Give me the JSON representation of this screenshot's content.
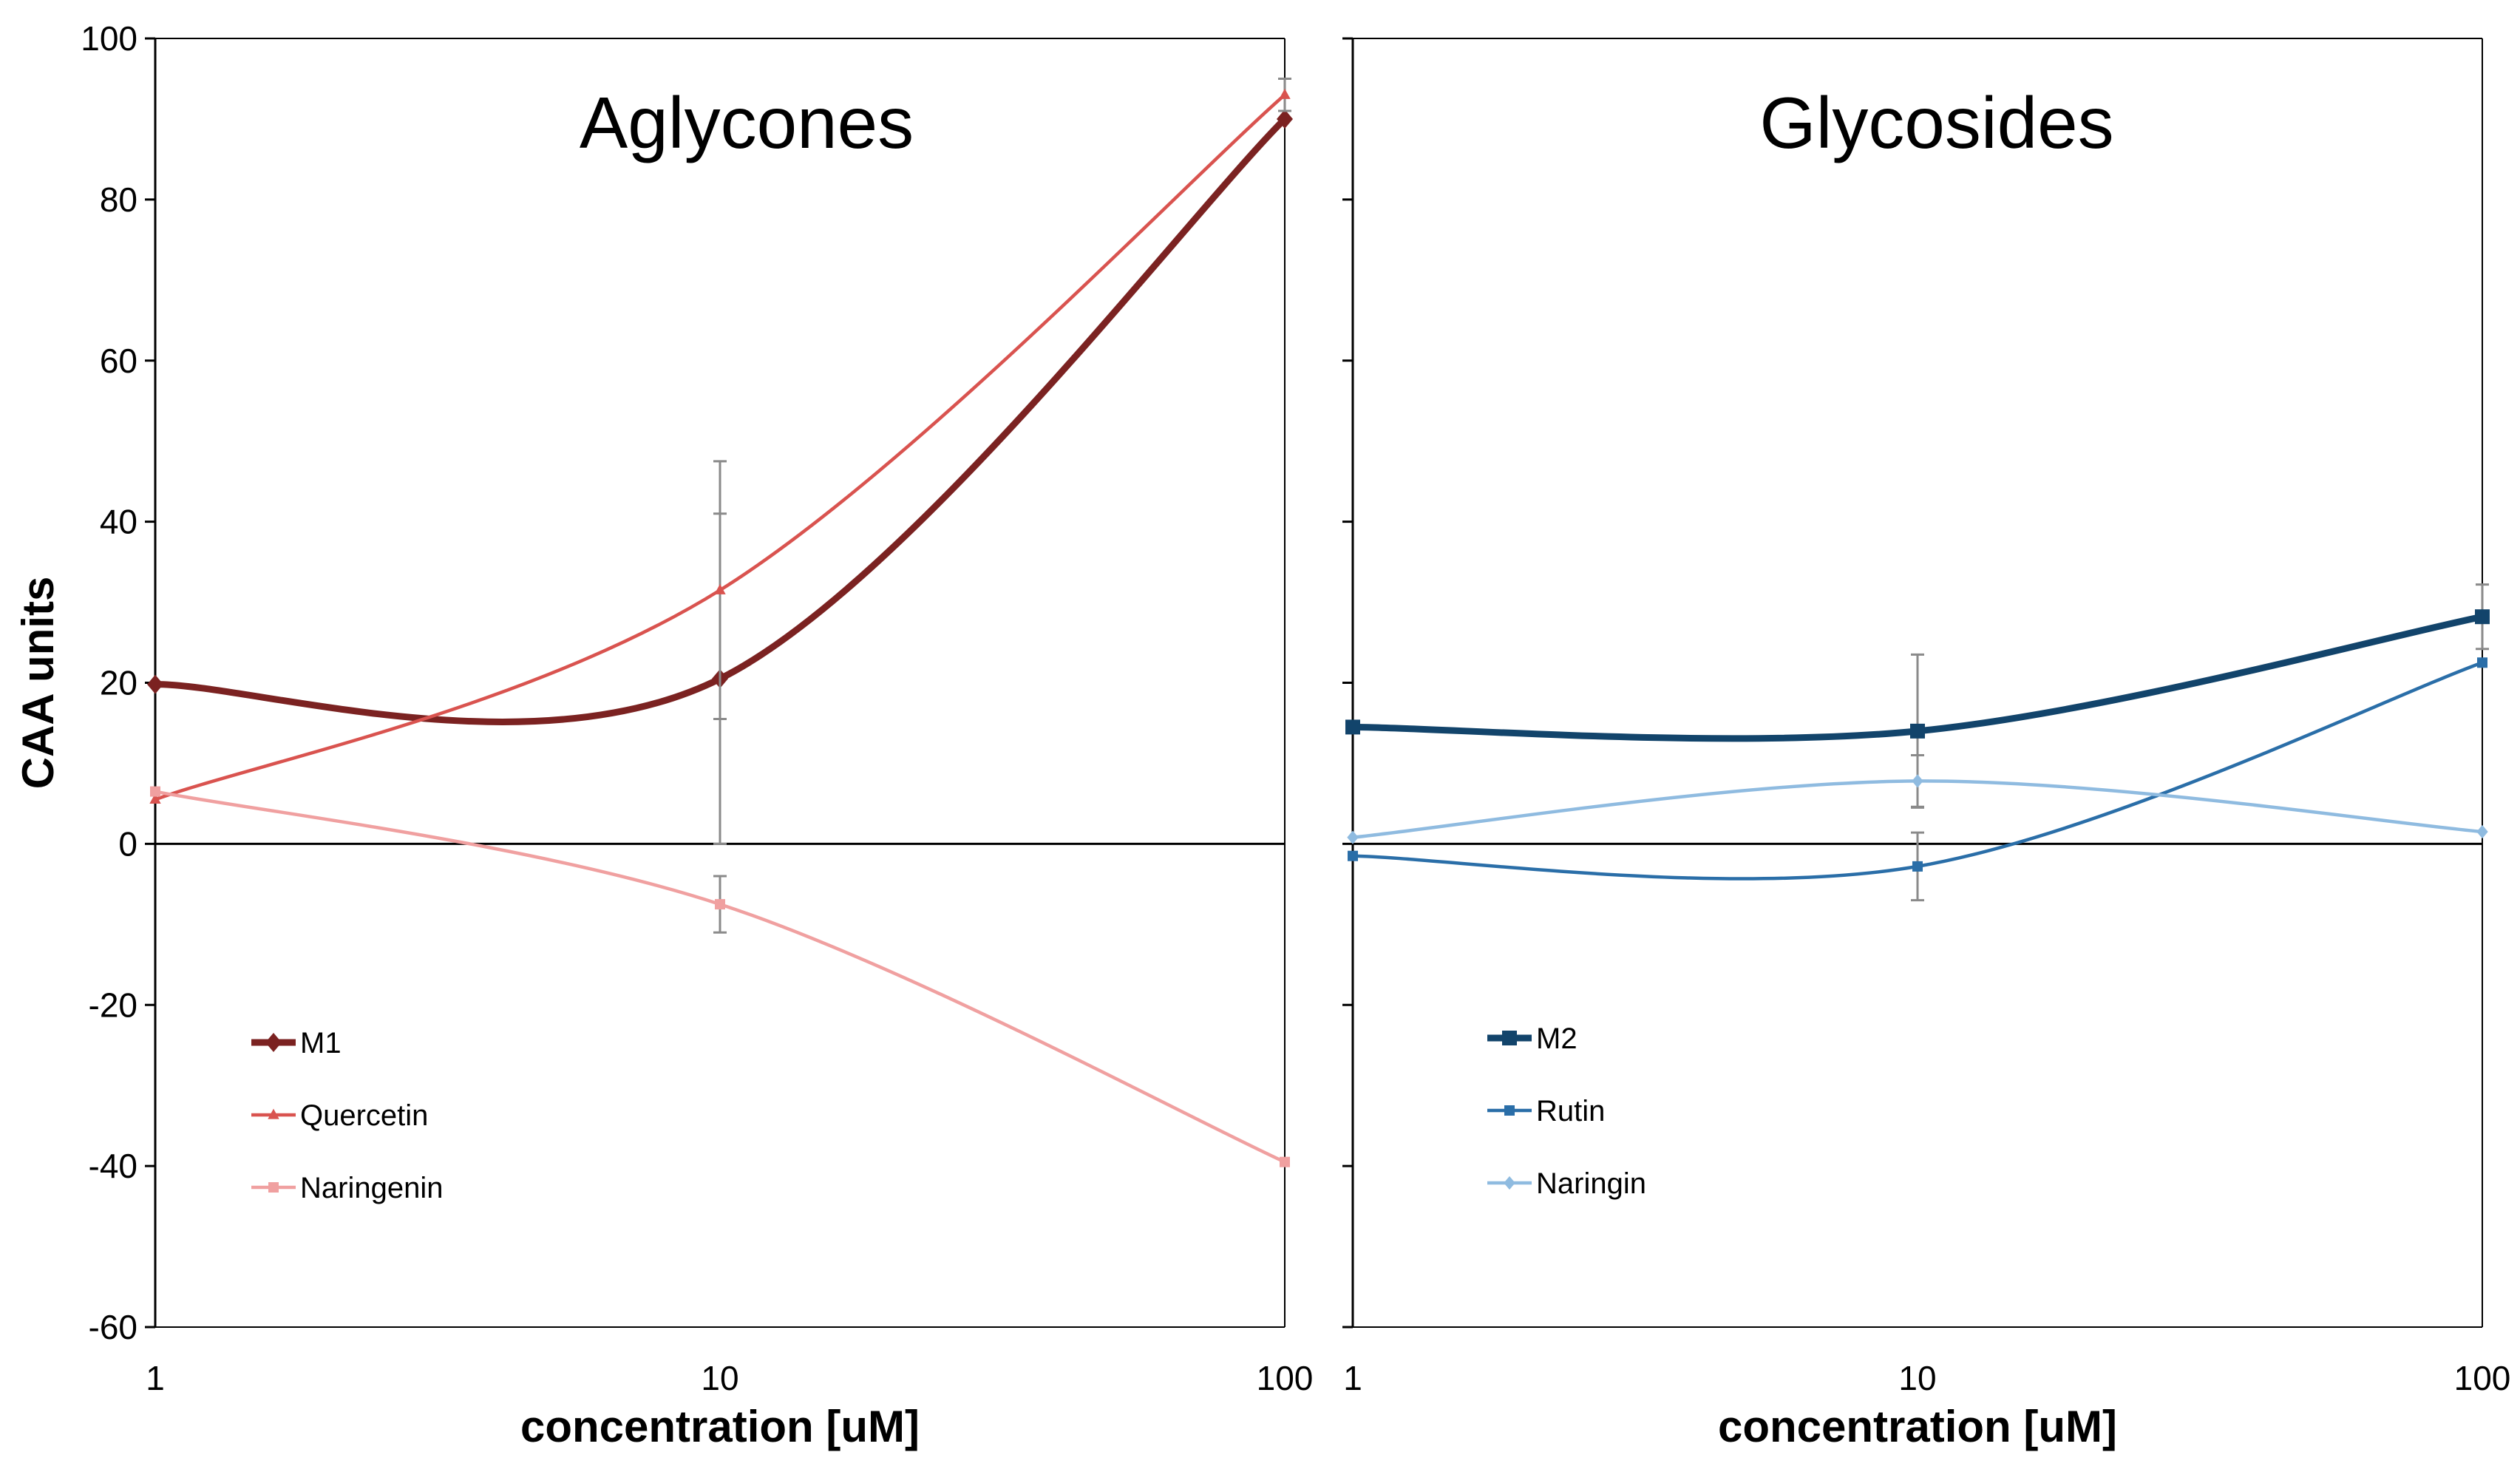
{
  "chart_data": [
    {
      "type": "line",
      "title": "Aglycones",
      "xlabel": "concentration [uM]",
      "ylabel": "CAA units",
      "xscale": "log",
      "x": [
        1,
        10,
        100
      ],
      "x_tick_labels": [
        "1",
        "10",
        "100"
      ],
      "ylim": [
        -60,
        100
      ],
      "y_ticks": [
        100,
        80,
        60,
        40,
        20,
        0,
        -20,
        -40,
        -60
      ],
      "y_tick_labels": [
        "100",
        "80",
        "60",
        "40",
        "20",
        "0",
        "-20",
        "-40",
        "-60"
      ],
      "legend_position": "lower-left",
      "series": [
        {
          "name": "M1",
          "values": [
            19.8,
            20.5,
            90
          ],
          "color": "#7b2221",
          "marker": "diamond",
          "width": "thick",
          "error": [
            0,
            20.5,
            0
          ]
        },
        {
          "name": "Quercetin",
          "values": [
            5.5,
            31.5,
            93
          ],
          "color": "#d9534f",
          "marker": "triangle",
          "width": "thin",
          "error": [
            0,
            16,
            2
          ]
        },
        {
          "name": "Naringenin",
          "values": [
            6.5,
            -7.5,
            -39.5
          ],
          "color": "#f0a0a0",
          "marker": "square",
          "width": "thin",
          "error": [
            0,
            3.5,
            0
          ]
        }
      ]
    },
    {
      "type": "line",
      "title": "Glycosides",
      "xlabel": "concentration [uM]",
      "ylabel": "",
      "xscale": "log",
      "x": [
        1,
        10,
        100
      ],
      "x_tick_labels": [
        "1",
        "10",
        "100"
      ],
      "ylim": [
        -60,
        100
      ],
      "y_ticks": [
        100,
        80,
        60,
        40,
        20,
        0,
        -20,
        -40,
        -60
      ],
      "legend_position": "lower-left",
      "series": [
        {
          "name": "M2",
          "values": [
            14.5,
            14,
            28.2
          ],
          "color": "#12446b",
          "marker": "square",
          "width": "thick",
          "error": [
            0,
            9.5,
            4
          ]
        },
        {
          "name": "Rutin",
          "values": [
            -1.5,
            -2.8,
            22.5
          ],
          "color": "#2a6ea8",
          "marker": "square",
          "width": "thin",
          "error": [
            0,
            4.2,
            0
          ]
        },
        {
          "name": "Naringin",
          "values": [
            0.8,
            7.8,
            1.5
          ],
          "color": "#8fbbe0",
          "marker": "diamond",
          "width": "thin",
          "error": [
            0,
            3.2,
            0
          ]
        }
      ]
    }
  ]
}
